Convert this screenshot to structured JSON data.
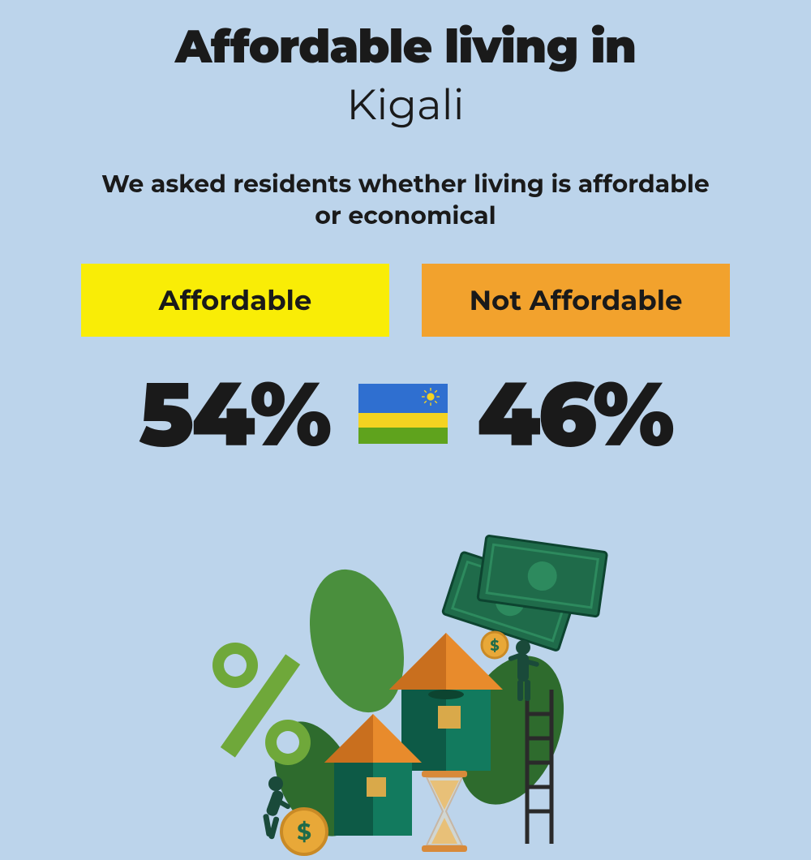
{
  "background_color": "#bcd4eb",
  "title": {
    "line1": "Affordable living in",
    "line2": "Kigali",
    "color": "#1a1a1a",
    "line1_weight": 900,
    "line2_weight": 400,
    "line1_size": 56,
    "line2_size": 52
  },
  "subtitle": {
    "text": "We asked residents whether living is affordable or economical",
    "weight": 700,
    "size": 30
  },
  "options": [
    {
      "label": "Affordable",
      "percent": "54%",
      "box_color": "#f9ed06",
      "text_color": "#1a1a1a"
    },
    {
      "label": "Not Affordable",
      "percent": "46%",
      "box_color": "#f2a22d",
      "text_color": "#1a1a1a"
    }
  ],
  "percent_style": {
    "weight": 900,
    "size": 110,
    "color": "#1a1a1a"
  },
  "flag": {
    "stripes": [
      {
        "color": "#2f6fd0",
        "height": 36
      },
      {
        "color": "#f4d321",
        "height": 18
      },
      {
        "color": "#5fa31d",
        "height": 20
      }
    ],
    "sun_color": "#f4d321"
  },
  "illustration": {
    "leaf_color": "#4a8f3d",
    "leaf_dark": "#2e6b2d",
    "percent_symbol_color": "#6fa83a",
    "house_wall": "#127a5e",
    "house_wall_dark": "#0d5a46",
    "house_roof": "#e88b2c",
    "house_roof_dark": "#c96f1e",
    "window_color": "#d9a94a",
    "money_color": "#1f6b4a",
    "money_light": "#2d8a5e",
    "money_border": "#0d4430",
    "coin_color": "#e8a838",
    "coin_dark": "#c98a26",
    "hourglass_frame": "#d88a3a",
    "hourglass_sand": "#e8c078",
    "person_color": "#1a4a3a",
    "ladder_color": "#2a2a2a"
  }
}
